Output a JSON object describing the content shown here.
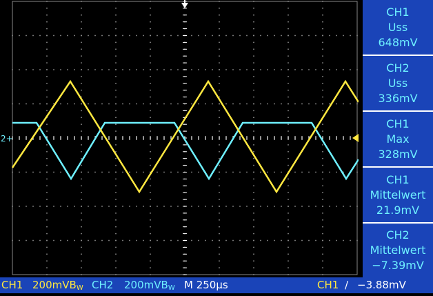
{
  "colors": {
    "ch1": "#ffe840",
    "ch2": "#6ef0ff",
    "panel": "#1a44b8",
    "grid": "#ffffff"
  },
  "screen": {
    "ch2_marker": "2+"
  },
  "measurements": [
    {
      "channel": "CH1",
      "label": "Uss",
      "value": "648mV"
    },
    {
      "channel": "CH2",
      "label": "Uss",
      "value": "336mV"
    },
    {
      "channel": "CH1",
      "label": "Max",
      "value": "328mV"
    },
    {
      "channel": "CH1",
      "label": "Mittelwert",
      "value": "21.9mV"
    },
    {
      "channel": "CH2",
      "label": "Mittelwert",
      "value": "−7.39mV"
    }
  ],
  "status": {
    "ch1_label": "CH1",
    "ch1_scale": "200mV",
    "ch1_bw": "B",
    "ch1_bw_sub": "W",
    "ch2_label": "CH2",
    "ch2_scale": "200mV",
    "ch2_bw": "B",
    "ch2_bw_sub": "W",
    "timebase": "M 250µs",
    "trigger_source": "CH1",
    "trigger_slope": "∕",
    "trigger_level": "−3.88mV"
  }
}
